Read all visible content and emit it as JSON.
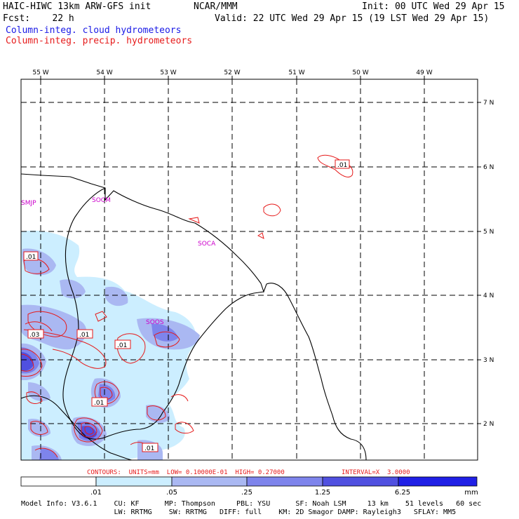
{
  "header": {
    "model_title": "HAIC-HIWC 13km ARW-GFS init",
    "org": "NCAR/MMM",
    "init": "Init: 00 UTC Wed 29 Apr 15",
    "fcst": "Fcst:    22 h",
    "valid": "Valid: 22 UTC Wed 29 Apr 15 (19 LST Wed 29 Apr 15)",
    "field_cloud": "Column-integ. cloud hydrometeors",
    "field_precip": "Column-integ. precip. hydrometeors"
  },
  "colors": {
    "cloud_text": "#1a1ae6",
    "precip_contour": "#e61a1a",
    "station_label": "#cc00cc",
    "shade_1": "#cceeff",
    "shade_2": "#aab8f2",
    "shade_3": "#7e84ec",
    "shade_4": "#5050e0",
    "shade_5": "#2020e6"
  },
  "map": {
    "lon_labels": [
      "55 W",
      "54 W",
      "53 W",
      "52 W",
      "51 W",
      "50 W",
      "49 W"
    ],
    "lat_labels": [
      "7 N",
      "6 N",
      "5 N",
      "4 N",
      "3 N",
      "2 N"
    ],
    "stations": [
      "SMJP",
      "SOCM",
      "SOCA",
      "SOOS"
    ],
    "contour_labels": [
      ".01",
      ".01",
      ".03",
      ".01",
      ".01",
      ".01",
      ".01"
    ]
  },
  "contour_info": {
    "contours": "CONTOURS:  UNITS=mm  LOW= 0.10000E-01  HIGH= 0.27000",
    "interval": "INTERVAL=X  3.0000"
  },
  "colorbar": {
    "ticks": [
      ".01",
      ".05",
      ".25",
      "1.25",
      "6.25"
    ],
    "units": "mm"
  },
  "footer": {
    "line1": "Model Info: V3.6.1    CU: KF      MP: Thompson     PBL: YSU      SF: Noah LSM     13 km    51 levels   60 sec",
    "line2": "                      LW: RRTMG    SW: RRTMG   DIFF: full    KM: 2D Smagor DAMP: Rayleigh3   SFLAY: MM5"
  }
}
